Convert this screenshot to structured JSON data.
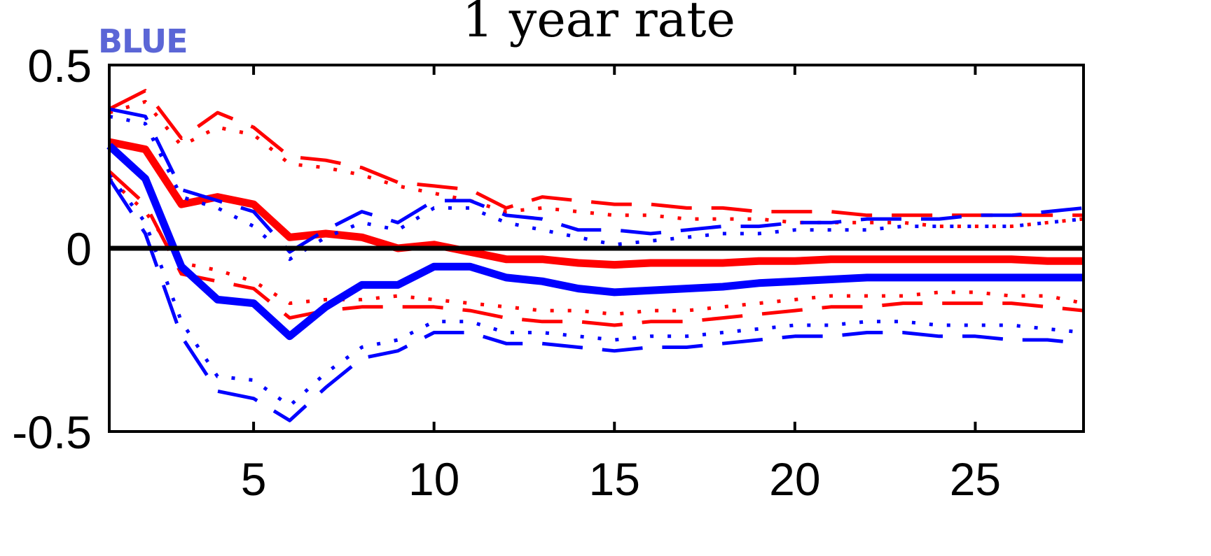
{
  "chart_data": {
    "type": "line",
    "title": "1 year rate",
    "badge_text": "BLUE",
    "xlabel": "",
    "ylabel": "",
    "xlim": [
      1,
      28
    ],
    "ylim": [
      -0.5,
      0.5
    ],
    "x_ticks": [
      5,
      10,
      15,
      20,
      25
    ],
    "y_ticks": [
      {
        "value": 0.5,
        "label": "0.5"
      },
      {
        "value": 0,
        "label": "0"
      },
      {
        "value": -0.5,
        "label": "-0.5"
      }
    ],
    "zero_line": true,
    "grid": false,
    "legend": "none",
    "x": [
      1,
      2,
      3,
      4,
      5,
      6,
      7,
      8,
      9,
      10,
      11,
      12,
      13,
      14,
      15,
      16,
      17,
      18,
      19,
      20,
      21,
      22,
      23,
      24,
      25,
      26,
      27,
      28
    ],
    "series": [
      {
        "color": "#ff0000",
        "style": "solid-thick",
        "values": [
          0.29,
          0.27,
          0.12,
          0.14,
          0.12,
          0.03,
          0.04,
          0.03,
          0.0,
          0.01,
          -0.01,
          -0.03,
          -0.03,
          -0.04,
          -0.045,
          -0.04,
          -0.04,
          -0.04,
          -0.035,
          -0.035,
          -0.03,
          -0.03,
          -0.03,
          -0.03,
          -0.03,
          -0.03,
          -0.035,
          -0.035
        ]
      },
      {
        "color": "#ff0000",
        "style": "dashed",
        "values": [
          0.38,
          0.43,
          0.3,
          0.37,
          0.33,
          0.25,
          0.24,
          0.22,
          0.18,
          0.17,
          0.16,
          0.11,
          0.14,
          0.13,
          0.12,
          0.12,
          0.11,
          0.11,
          0.1,
          0.1,
          0.1,
          0.09,
          0.09,
          0.09,
          0.09,
          0.09,
          0.09,
          0.09
        ]
      },
      {
        "color": "#ff0000",
        "style": "dotted",
        "values": [
          0.37,
          0.4,
          0.28,
          0.33,
          0.31,
          0.23,
          0.22,
          0.2,
          0.17,
          0.15,
          0.13,
          0.1,
          0.11,
          0.1,
          0.09,
          0.09,
          0.08,
          0.08,
          0.08,
          0.07,
          0.07,
          0.07,
          0.07,
          0.06,
          0.06,
          0.06,
          0.07,
          0.08
        ]
      },
      {
        "color": "#ff0000",
        "style": "dashed",
        "values": [
          0.21,
          0.12,
          -0.07,
          -0.09,
          -0.11,
          -0.19,
          -0.17,
          -0.16,
          -0.16,
          -0.16,
          -0.17,
          -0.19,
          -0.2,
          -0.2,
          -0.21,
          -0.2,
          -0.2,
          -0.19,
          -0.18,
          -0.17,
          -0.16,
          -0.16,
          -0.15,
          -0.15,
          -0.15,
          -0.15,
          -0.16,
          -0.17
        ]
      },
      {
        "color": "#ff0000",
        "style": "dotted",
        "values": [
          0.19,
          0.1,
          -0.04,
          -0.06,
          -0.09,
          -0.15,
          -0.14,
          -0.14,
          -0.13,
          -0.14,
          -0.15,
          -0.16,
          -0.17,
          -0.17,
          -0.18,
          -0.17,
          -0.17,
          -0.16,
          -0.15,
          -0.14,
          -0.13,
          -0.13,
          -0.13,
          -0.12,
          -0.12,
          -0.13,
          -0.13,
          -0.15
        ]
      },
      {
        "color": "#0000ff",
        "style": "solid-thick",
        "values": [
          0.28,
          0.19,
          -0.05,
          -0.14,
          -0.15,
          -0.24,
          -0.16,
          -0.1,
          -0.1,
          -0.05,
          -0.05,
          -0.08,
          -0.09,
          -0.11,
          -0.12,
          -0.115,
          -0.11,
          -0.105,
          -0.095,
          -0.09,
          -0.085,
          -0.08,
          -0.08,
          -0.08,
          -0.08,
          -0.08,
          -0.08,
          -0.08
        ]
      },
      {
        "color": "#0000ff",
        "style": "dashed",
        "values": [
          0.38,
          0.36,
          0.16,
          0.13,
          0.1,
          -0.01,
          0.05,
          0.1,
          0.07,
          0.13,
          0.13,
          0.09,
          0.08,
          0.05,
          0.05,
          0.04,
          0.05,
          0.06,
          0.06,
          0.07,
          0.07,
          0.08,
          0.08,
          0.08,
          0.09,
          0.09,
          0.1,
          0.11
        ]
      },
      {
        "color": "#0000ff",
        "style": "dotted",
        "values": [
          0.36,
          0.34,
          0.14,
          0.11,
          0.06,
          -0.03,
          0.03,
          0.07,
          0.05,
          0.11,
          0.11,
          0.07,
          0.05,
          0.03,
          0.01,
          0.02,
          0.03,
          0.04,
          0.04,
          0.05,
          0.05,
          0.05,
          0.06,
          0.06,
          0.06,
          0.06,
          0.07,
          0.08
        ]
      },
      {
        "color": "#0000ff",
        "style": "dashed",
        "values": [
          0.19,
          0.04,
          -0.24,
          -0.39,
          -0.41,
          -0.47,
          -0.38,
          -0.3,
          -0.28,
          -0.23,
          -0.23,
          -0.26,
          -0.26,
          -0.27,
          -0.28,
          -0.27,
          -0.27,
          -0.26,
          -0.25,
          -0.24,
          -0.24,
          -0.23,
          -0.23,
          -0.24,
          -0.24,
          -0.25,
          -0.25,
          -0.26
        ]
      },
      {
        "color": "#0000ff",
        "style": "dotted",
        "values": [
          0.2,
          0.07,
          -0.2,
          -0.35,
          -0.36,
          -0.43,
          -0.34,
          -0.27,
          -0.25,
          -0.2,
          -0.2,
          -0.23,
          -0.23,
          -0.24,
          -0.25,
          -0.24,
          -0.24,
          -0.23,
          -0.22,
          -0.21,
          -0.21,
          -0.2,
          -0.2,
          -0.21,
          -0.21,
          -0.21,
          -0.22,
          -0.23
        ]
      }
    ]
  }
}
